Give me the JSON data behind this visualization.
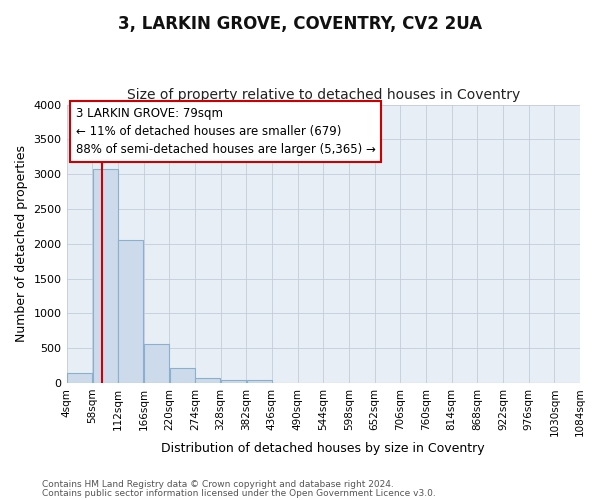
{
  "title": "3, LARKIN GROVE, COVENTRY, CV2 2UA",
  "subtitle": "Size of property relative to detached houses in Coventry",
  "xlabel": "Distribution of detached houses by size in Coventry",
  "ylabel": "Number of detached properties",
  "bin_labels": [
    "4sqm",
    "58sqm",
    "112sqm",
    "166sqm",
    "220sqm",
    "274sqm",
    "328sqm",
    "382sqm",
    "436sqm",
    "490sqm",
    "544sqm",
    "598sqm",
    "652sqm",
    "706sqm",
    "760sqm",
    "814sqm",
    "868sqm",
    "922sqm",
    "976sqm",
    "1030sqm",
    "1084sqm"
  ],
  "bar_values": [
    150,
    3070,
    2060,
    560,
    210,
    75,
    40,
    40,
    0,
    0,
    0,
    0,
    0,
    0,
    0,
    0,
    0,
    0,
    0,
    0
  ],
  "bar_color": "#ccdaeb",
  "bar_edge_color": "#8ab0cc",
  "property_line_x_bin": 1,
  "property_line_color": "#cc0000",
  "annotation_text": "3 LARKIN GROVE: 79sqm\n← 11% of detached houses are smaller (679)\n88% of semi-detached houses are larger (5,365) →",
  "annotation_box_facecolor": "#ffffff",
  "annotation_box_edgecolor": "#cc0000",
  "ylim": [
    0,
    4000
  ],
  "yticks": [
    0,
    500,
    1000,
    1500,
    2000,
    2500,
    3000,
    3500,
    4000
  ],
  "xlim_min": 0,
  "xlim_max": 21,
  "bg_color": "#e8eef5",
  "footnote1": "Contains HM Land Registry data © Crown copyright and database right 2024.",
  "footnote2": "Contains public sector information licensed under the Open Government Licence v3.0.",
  "title_fontsize": 12,
  "subtitle_fontsize": 10,
  "axis_label_fontsize": 9,
  "tick_fontsize": 8,
  "annot_fontsize": 8.5
}
